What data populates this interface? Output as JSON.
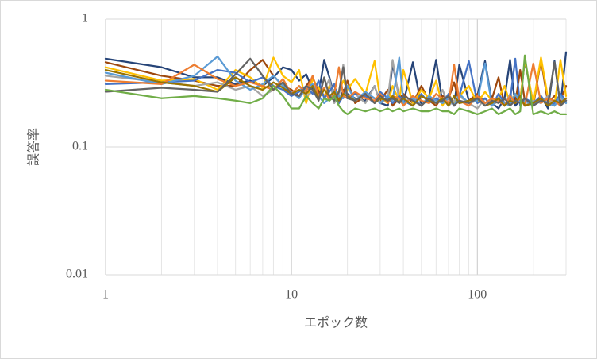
{
  "chart_data": {
    "type": "line",
    "x_label": "エポック数",
    "y_label": "誤答率",
    "x_scale": "log",
    "y_scale": "log",
    "xlim": [
      1,
      300
    ],
    "ylim": [
      0.01,
      1
    ],
    "xticks": [
      1,
      10,
      100
    ],
    "yticks": [
      0.01,
      0.1,
      1
    ],
    "x_minor_grid": [
      2,
      3,
      4,
      5,
      6,
      7,
      8,
      9,
      20,
      30,
      40,
      50,
      60,
      70,
      80,
      90,
      200,
      300
    ],
    "grid": true,
    "x": [
      1,
      2,
      3,
      4,
      5,
      6,
      7,
      8,
      9,
      10,
      11,
      12,
      13,
      14,
      15,
      16,
      17,
      18,
      19,
      20,
      22,
      25,
      28,
      30,
      33,
      35,
      38,
      40,
      45,
      50,
      55,
      60,
      65,
      70,
      75,
      80,
      90,
      100,
      110,
      120,
      130,
      140,
      150,
      160,
      170,
      180,
      200,
      220,
      240,
      260,
      280,
      300
    ],
    "series": [
      {
        "color": "#264478",
        "values": [
          0.49,
          0.42,
          0.35,
          0.35,
          0.31,
          0.33,
          0.3,
          0.35,
          0.42,
          0.4,
          0.33,
          0.37,
          0.28,
          0.26,
          0.48,
          0.35,
          0.25,
          0.22,
          0.28,
          0.26,
          0.24,
          0.23,
          0.3,
          0.22,
          0.21,
          0.45,
          0.24,
          0.22,
          0.46,
          0.21,
          0.25,
          0.48,
          0.22,
          0.24,
          0.21,
          0.44,
          0.23,
          0.25,
          0.47,
          0.22,
          0.2,
          0.24,
          0.48,
          0.21,
          0.23,
          0.47,
          0.22,
          0.25,
          0.2,
          0.47,
          0.21,
          0.55
        ]
      },
      {
        "color": "#9E480E",
        "values": [
          0.46,
          0.36,
          0.33,
          0.3,
          0.3,
          0.4,
          0.48,
          0.36,
          0.3,
          0.28,
          0.25,
          0.3,
          0.35,
          0.27,
          0.25,
          0.29,
          0.3,
          0.24,
          0.26,
          0.33,
          0.22,
          0.25,
          0.24,
          0.23,
          0.28,
          0.21,
          0.24,
          0.26,
          0.22,
          0.3,
          0.23,
          0.21,
          0.25,
          0.24,
          0.32,
          0.22,
          0.23,
          0.26,
          0.22,
          0.24,
          0.35,
          0.21,
          0.24,
          0.22,
          0.4,
          0.23,
          0.21,
          0.48,
          0.22,
          0.25,
          0.23,
          0.3
        ]
      },
      {
        "color": "#FFC000",
        "values": [
          0.42,
          0.33,
          0.34,
          0.28,
          0.4,
          0.35,
          0.29,
          0.5,
          0.36,
          0.32,
          0.4,
          0.22,
          0.34,
          0.29,
          0.25,
          0.3,
          0.26,
          0.27,
          0.33,
          0.28,
          0.34,
          0.26,
          0.47,
          0.24,
          0.22,
          0.3,
          0.23,
          0.4,
          0.22,
          0.28,
          0.24,
          0.33,
          0.21,
          0.26,
          0.22,
          0.25,
          0.3,
          0.22,
          0.27,
          0.23,
          0.24,
          0.3,
          0.22,
          0.26,
          0.23,
          0.48,
          0.22,
          0.5,
          0.24,
          0.21,
          0.48,
          0.25
        ]
      },
      {
        "color": "#A5A5A5",
        "values": [
          0.36,
          0.32,
          0.3,
          0.32,
          0.28,
          0.3,
          0.25,
          0.28,
          0.32,
          0.26,
          0.3,
          0.25,
          0.27,
          0.24,
          0.28,
          0.34,
          0.22,
          0.25,
          0.44,
          0.24,
          0.26,
          0.22,
          0.3,
          0.22,
          0.24,
          0.48,
          0.23,
          0.22,
          0.25,
          0.21,
          0.24,
          0.22,
          0.28,
          0.21,
          0.23,
          0.25,
          0.22,
          0.2,
          0.24,
          0.21,
          0.23,
          0.21,
          0.26,
          0.22,
          0.24,
          0.21,
          0.23,
          0.22,
          0.25,
          0.21,
          0.24,
          0.22
        ]
      },
      {
        "color": "#4472C4",
        "values": [
          0.31,
          0.32,
          0.33,
          0.4,
          0.38,
          0.32,
          0.35,
          0.3,
          0.28,
          0.25,
          0.27,
          0.3,
          0.26,
          0.33,
          0.24,
          0.27,
          0.31,
          0.22,
          0.25,
          0.24,
          0.26,
          0.25,
          0.22,
          0.27,
          0.24,
          0.22,
          0.25,
          0.23,
          0.21,
          0.26,
          0.22,
          0.24,
          0.22,
          0.26,
          0.21,
          0.25,
          0.47,
          0.22,
          0.24,
          0.21,
          0.26,
          0.22,
          0.23,
          0.49,
          0.21,
          0.24,
          0.22,
          0.25,
          0.21,
          0.22,
          0.26,
          0.23
        ]
      },
      {
        "color": "#5B9BD5",
        "values": [
          0.38,
          0.31,
          0.36,
          0.51,
          0.33,
          0.28,
          0.31,
          0.36,
          0.3,
          0.27,
          0.24,
          0.29,
          0.31,
          0.25,
          0.22,
          0.24,
          0.28,
          0.25,
          0.24,
          0.3,
          0.23,
          0.27,
          0.24,
          0.22,
          0.25,
          0.23,
          0.5,
          0.22,
          0.24,
          0.21,
          0.25,
          0.23,
          0.22,
          0.24,
          0.21,
          0.26,
          0.22,
          0.23,
          0.45,
          0.21,
          0.24,
          0.22,
          0.21,
          0.26,
          0.22,
          0.23,
          0.21,
          0.24,
          0.22,
          0.21,
          0.25,
          0.22
        ]
      },
      {
        "color": "#ED7D31",
        "values": [
          0.33,
          0.31,
          0.44,
          0.34,
          0.3,
          0.32,
          0.3,
          0.28,
          0.34,
          0.26,
          0.3,
          0.27,
          0.36,
          0.25,
          0.29,
          0.23,
          0.26,
          0.42,
          0.25,
          0.24,
          0.27,
          0.24,
          0.23,
          0.26,
          0.22,
          0.25,
          0.24,
          0.21,
          0.25,
          0.23,
          0.22,
          0.26,
          0.24,
          0.22,
          0.44,
          0.23,
          0.21,
          0.25,
          0.22,
          0.24,
          0.23,
          0.21,
          0.25,
          0.22,
          0.24,
          0.21,
          0.45,
          0.22,
          0.24,
          0.23,
          0.21,
          0.24
        ]
      },
      {
        "color": "#997300",
        "values": [
          0.4,
          0.32,
          0.3,
          0.27,
          0.35,
          0.3,
          0.28,
          0.32,
          0.29,
          0.26,
          0.28,
          0.26,
          0.3,
          0.24,
          0.28,
          0.25,
          0.27,
          0.23,
          0.26,
          0.25,
          0.23,
          0.26,
          0.22,
          0.24,
          0.23,
          0.25,
          0.22,
          0.24,
          0.21,
          0.25,
          0.23,
          0.22,
          0.24,
          0.21,
          0.25,
          0.22,
          0.23,
          0.24,
          0.21,
          0.22,
          0.24,
          0.21,
          0.23,
          0.22,
          0.25,
          0.21,
          0.22,
          0.24,
          0.21,
          0.23,
          0.22,
          0.24
        ]
      },
      {
        "color": "#636363",
        "values": [
          0.27,
          0.29,
          0.28,
          0.27,
          0.37,
          0.49,
          0.36,
          0.28,
          0.32,
          0.26,
          0.25,
          0.3,
          0.28,
          0.23,
          0.35,
          0.25,
          0.23,
          0.27,
          0.42,
          0.24,
          0.23,
          0.26,
          0.22,
          0.25,
          0.23,
          0.24,
          0.22,
          0.25,
          0.23,
          0.21,
          0.24,
          0.22,
          0.23,
          0.25,
          0.21,
          0.23,
          0.22,
          0.24,
          0.21,
          0.23,
          0.22,
          0.24,
          0.21,
          0.23,
          0.22,
          0.24,
          0.21,
          0.23,
          0.22,
          0.46,
          0.21,
          0.23
        ]
      },
      {
        "color": "#70AD47",
        "values": [
          0.28,
          0.24,
          0.25,
          0.24,
          0.23,
          0.22,
          0.24,
          0.3,
          0.25,
          0.2,
          0.2,
          0.25,
          0.22,
          0.2,
          0.24,
          0.23,
          0.25,
          0.21,
          0.19,
          0.18,
          0.2,
          0.19,
          0.2,
          0.19,
          0.2,
          0.19,
          0.2,
          0.19,
          0.2,
          0.19,
          0.19,
          0.2,
          0.19,
          0.19,
          0.18,
          0.2,
          0.19,
          0.18,
          0.19,
          0.2,
          0.18,
          0.19,
          0.2,
          0.18,
          0.19,
          0.52,
          0.18,
          0.19,
          0.18,
          0.19,
          0.18,
          0.18
        ]
      }
    ]
  }
}
